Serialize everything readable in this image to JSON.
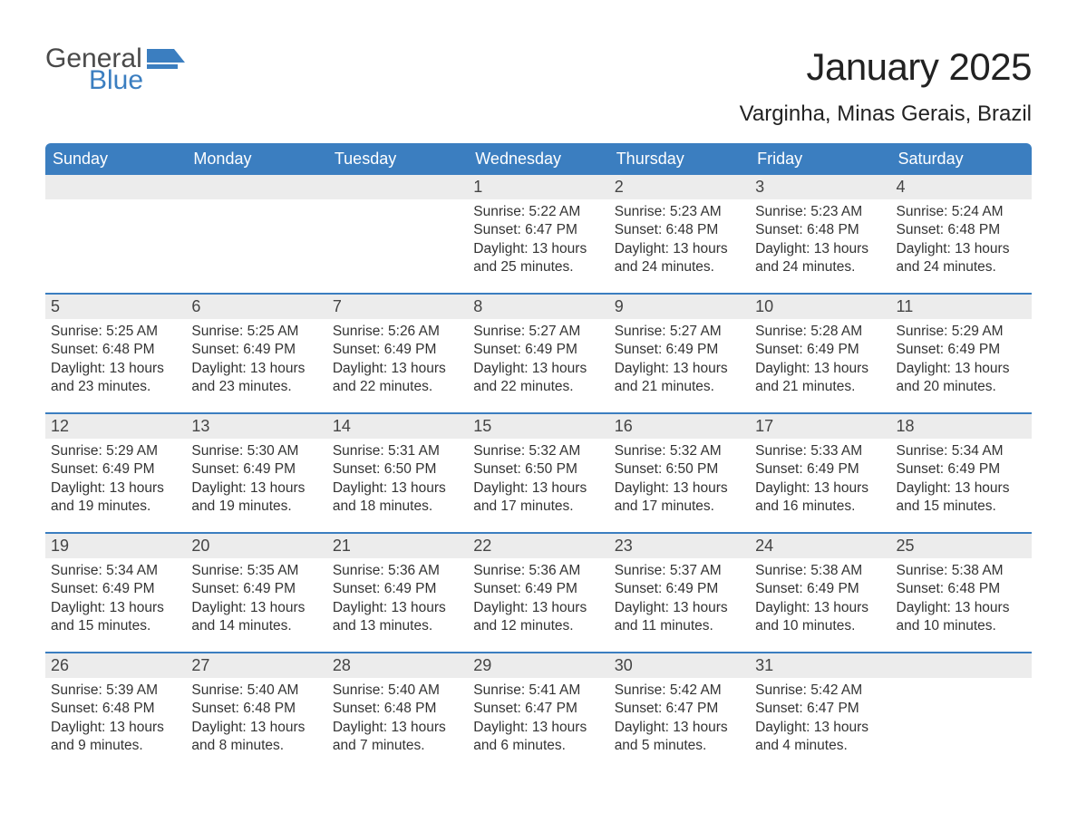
{
  "brand": {
    "word1": "General",
    "word2": "Blue",
    "word1_color": "#4a4a4a",
    "word2_color": "#3b7ec0",
    "icon_color": "#3b7ec0"
  },
  "title": "January 2025",
  "location": "Varginha, Minas Gerais, Brazil",
  "colors": {
    "header_bg": "#3b7ec0",
    "header_text": "#ffffff",
    "daynum_bg": "#ececec",
    "week_border": "#3b7ec0",
    "body_bg": "#ffffff",
    "text": "#333333"
  },
  "typography": {
    "title_fontsize": 42,
    "location_fontsize": 24,
    "dow_fontsize": 18,
    "daynum_fontsize": 18,
    "body_fontsize": 15.5,
    "font_family": "Arial"
  },
  "days_of_week": [
    "Sunday",
    "Monday",
    "Tuesday",
    "Wednesday",
    "Thursday",
    "Friday",
    "Saturday"
  ],
  "weeks": [
    [
      {
        "empty": true
      },
      {
        "empty": true
      },
      {
        "empty": true
      },
      {
        "num": "1",
        "sunrise": "Sunrise: 5:22 AM",
        "sunset": "Sunset: 6:47 PM",
        "daylight1": "Daylight: 13 hours",
        "daylight2": "and 25 minutes."
      },
      {
        "num": "2",
        "sunrise": "Sunrise: 5:23 AM",
        "sunset": "Sunset: 6:48 PM",
        "daylight1": "Daylight: 13 hours",
        "daylight2": "and 24 minutes."
      },
      {
        "num": "3",
        "sunrise": "Sunrise: 5:23 AM",
        "sunset": "Sunset: 6:48 PM",
        "daylight1": "Daylight: 13 hours",
        "daylight2": "and 24 minutes."
      },
      {
        "num": "4",
        "sunrise": "Sunrise: 5:24 AM",
        "sunset": "Sunset: 6:48 PM",
        "daylight1": "Daylight: 13 hours",
        "daylight2": "and 24 minutes."
      }
    ],
    [
      {
        "num": "5",
        "sunrise": "Sunrise: 5:25 AM",
        "sunset": "Sunset: 6:48 PM",
        "daylight1": "Daylight: 13 hours",
        "daylight2": "and 23 minutes."
      },
      {
        "num": "6",
        "sunrise": "Sunrise: 5:25 AM",
        "sunset": "Sunset: 6:49 PM",
        "daylight1": "Daylight: 13 hours",
        "daylight2": "and 23 minutes."
      },
      {
        "num": "7",
        "sunrise": "Sunrise: 5:26 AM",
        "sunset": "Sunset: 6:49 PM",
        "daylight1": "Daylight: 13 hours",
        "daylight2": "and 22 minutes."
      },
      {
        "num": "8",
        "sunrise": "Sunrise: 5:27 AM",
        "sunset": "Sunset: 6:49 PM",
        "daylight1": "Daylight: 13 hours",
        "daylight2": "and 22 minutes."
      },
      {
        "num": "9",
        "sunrise": "Sunrise: 5:27 AM",
        "sunset": "Sunset: 6:49 PM",
        "daylight1": "Daylight: 13 hours",
        "daylight2": "and 21 minutes."
      },
      {
        "num": "10",
        "sunrise": "Sunrise: 5:28 AM",
        "sunset": "Sunset: 6:49 PM",
        "daylight1": "Daylight: 13 hours",
        "daylight2": "and 21 minutes."
      },
      {
        "num": "11",
        "sunrise": "Sunrise: 5:29 AM",
        "sunset": "Sunset: 6:49 PM",
        "daylight1": "Daylight: 13 hours",
        "daylight2": "and 20 minutes."
      }
    ],
    [
      {
        "num": "12",
        "sunrise": "Sunrise: 5:29 AM",
        "sunset": "Sunset: 6:49 PM",
        "daylight1": "Daylight: 13 hours",
        "daylight2": "and 19 minutes."
      },
      {
        "num": "13",
        "sunrise": "Sunrise: 5:30 AM",
        "sunset": "Sunset: 6:49 PM",
        "daylight1": "Daylight: 13 hours",
        "daylight2": "and 19 minutes."
      },
      {
        "num": "14",
        "sunrise": "Sunrise: 5:31 AM",
        "sunset": "Sunset: 6:50 PM",
        "daylight1": "Daylight: 13 hours",
        "daylight2": "and 18 minutes."
      },
      {
        "num": "15",
        "sunrise": "Sunrise: 5:32 AM",
        "sunset": "Sunset: 6:50 PM",
        "daylight1": "Daylight: 13 hours",
        "daylight2": "and 17 minutes."
      },
      {
        "num": "16",
        "sunrise": "Sunrise: 5:32 AM",
        "sunset": "Sunset: 6:50 PM",
        "daylight1": "Daylight: 13 hours",
        "daylight2": "and 17 minutes."
      },
      {
        "num": "17",
        "sunrise": "Sunrise: 5:33 AM",
        "sunset": "Sunset: 6:49 PM",
        "daylight1": "Daylight: 13 hours",
        "daylight2": "and 16 minutes."
      },
      {
        "num": "18",
        "sunrise": "Sunrise: 5:34 AM",
        "sunset": "Sunset: 6:49 PM",
        "daylight1": "Daylight: 13 hours",
        "daylight2": "and 15 minutes."
      }
    ],
    [
      {
        "num": "19",
        "sunrise": "Sunrise: 5:34 AM",
        "sunset": "Sunset: 6:49 PM",
        "daylight1": "Daylight: 13 hours",
        "daylight2": "and 15 minutes."
      },
      {
        "num": "20",
        "sunrise": "Sunrise: 5:35 AM",
        "sunset": "Sunset: 6:49 PM",
        "daylight1": "Daylight: 13 hours",
        "daylight2": "and 14 minutes."
      },
      {
        "num": "21",
        "sunrise": "Sunrise: 5:36 AM",
        "sunset": "Sunset: 6:49 PM",
        "daylight1": "Daylight: 13 hours",
        "daylight2": "and 13 minutes."
      },
      {
        "num": "22",
        "sunrise": "Sunrise: 5:36 AM",
        "sunset": "Sunset: 6:49 PM",
        "daylight1": "Daylight: 13 hours",
        "daylight2": "and 12 minutes."
      },
      {
        "num": "23",
        "sunrise": "Sunrise: 5:37 AM",
        "sunset": "Sunset: 6:49 PM",
        "daylight1": "Daylight: 13 hours",
        "daylight2": "and 11 minutes."
      },
      {
        "num": "24",
        "sunrise": "Sunrise: 5:38 AM",
        "sunset": "Sunset: 6:49 PM",
        "daylight1": "Daylight: 13 hours",
        "daylight2": "and 10 minutes."
      },
      {
        "num": "25",
        "sunrise": "Sunrise: 5:38 AM",
        "sunset": "Sunset: 6:48 PM",
        "daylight1": "Daylight: 13 hours",
        "daylight2": "and 10 minutes."
      }
    ],
    [
      {
        "num": "26",
        "sunrise": "Sunrise: 5:39 AM",
        "sunset": "Sunset: 6:48 PM",
        "daylight1": "Daylight: 13 hours",
        "daylight2": "and 9 minutes."
      },
      {
        "num": "27",
        "sunrise": "Sunrise: 5:40 AM",
        "sunset": "Sunset: 6:48 PM",
        "daylight1": "Daylight: 13 hours",
        "daylight2": "and 8 minutes."
      },
      {
        "num": "28",
        "sunrise": "Sunrise: 5:40 AM",
        "sunset": "Sunset: 6:48 PM",
        "daylight1": "Daylight: 13 hours",
        "daylight2": "and 7 minutes."
      },
      {
        "num": "29",
        "sunrise": "Sunrise: 5:41 AM",
        "sunset": "Sunset: 6:47 PM",
        "daylight1": "Daylight: 13 hours",
        "daylight2": "and 6 minutes."
      },
      {
        "num": "30",
        "sunrise": "Sunrise: 5:42 AM",
        "sunset": "Sunset: 6:47 PM",
        "daylight1": "Daylight: 13 hours",
        "daylight2": "and 5 minutes."
      },
      {
        "num": "31",
        "sunrise": "Sunrise: 5:42 AM",
        "sunset": "Sunset: 6:47 PM",
        "daylight1": "Daylight: 13 hours",
        "daylight2": "and 4 minutes."
      },
      {
        "empty": true
      }
    ]
  ]
}
